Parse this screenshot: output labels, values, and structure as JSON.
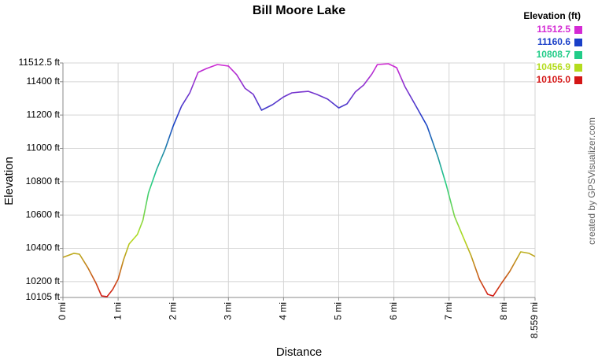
{
  "chart_data": {
    "type": "line",
    "title": "Bill Moore Lake",
    "xlabel": "Distance",
    "ylabel": "Elevation",
    "credit": "created by GPSVisualizer.com",
    "legend_title": "Elevation (ft)",
    "color_scale": [
      {
        "value": 11512.5,
        "label": "11512.5",
        "color": "#d42ad4"
      },
      {
        "value": 11160.6,
        "label": "11160.6",
        "color": "#1a3fc8"
      },
      {
        "value": 10808.7,
        "label": "10808.7",
        "color": "#22cc88"
      },
      {
        "value": 10456.9,
        "label": "10456.9",
        "color": "#b4dc1e"
      },
      {
        "value": 10105.0,
        "label": "10105.0",
        "color": "#d41616"
      }
    ],
    "x": [
      0,
      0.2,
      0.3,
      0.45,
      0.6,
      0.7,
      0.8,
      0.9,
      1.0,
      1.1,
      1.2,
      1.35,
      1.45,
      1.55,
      1.7,
      1.85,
      2.0,
      2.15,
      2.3,
      2.45,
      2.6,
      2.8,
      3.0,
      3.15,
      3.3,
      3.45,
      3.6,
      3.8,
      4.0,
      4.15,
      4.3,
      4.45,
      4.6,
      4.8,
      5.0,
      5.15,
      5.3,
      5.45,
      5.6,
      5.7,
      5.9,
      6.05,
      6.2,
      6.4,
      6.6,
      6.8,
      6.95,
      7.1,
      7.25,
      7.4,
      7.55,
      7.7,
      7.8,
      7.95,
      8.1,
      8.3,
      8.45,
      8.559
    ],
    "values": [
      10346,
      10370,
      10365,
      10285,
      10190,
      10114,
      10110,
      10152,
      10214,
      10332,
      10426,
      10483,
      10568,
      10733,
      10875,
      10993,
      11135,
      11253,
      11333,
      11456,
      11479,
      11503,
      11494,
      11442,
      11361,
      11324,
      11229,
      11262,
      11309,
      11333,
      11338,
      11342,
      11324,
      11295,
      11243,
      11267,
      11338,
      11380,
      11446,
      11503,
      11508,
      11484,
      11371,
      11253,
      11135,
      10946,
      10780,
      10591,
      10473,
      10355,
      10214,
      10124,
      10114,
      10190,
      10261,
      10379,
      10370,
      10351
    ],
    "xlim": [
      0,
      8.559
    ],
    "ylim": [
      10105,
      11512.5
    ],
    "xticks": [
      {
        "value": 0,
        "label": "0 mi"
      },
      {
        "value": 1,
        "label": "1 mi"
      },
      {
        "value": 2,
        "label": "2 mi"
      },
      {
        "value": 3,
        "label": "3 mi"
      },
      {
        "value": 4,
        "label": "4 mi"
      },
      {
        "value": 5,
        "label": "5 mi"
      },
      {
        "value": 6,
        "label": "6 mi"
      },
      {
        "value": 7,
        "label": "7 mi"
      },
      {
        "value": 8,
        "label": "8 mi"
      },
      {
        "value": 8.559,
        "label": "8.559 mi"
      }
    ],
    "yticks": [
      {
        "value": 10105,
        "label": "10105 ft"
      },
      {
        "value": 10200,
        "label": "10200 ft"
      },
      {
        "value": 10400,
        "label": "10400 ft"
      },
      {
        "value": 10600,
        "label": "10600 ft"
      },
      {
        "value": 10800,
        "label": "10800 ft"
      },
      {
        "value": 11000,
        "label": "11000 ft"
      },
      {
        "value": 11200,
        "label": "11200 ft"
      },
      {
        "value": 11400,
        "label": "11400 ft"
      },
      {
        "value": 11512.5,
        "label": "11512.5 ft"
      }
    ],
    "grid": true
  }
}
